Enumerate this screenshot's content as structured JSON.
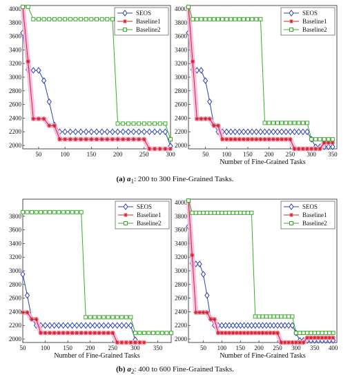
{
  "captions": {
    "a": {
      "tag": "(a)",
      "var": "a",
      "sub": "1",
      "text": ": 200 to 300 Fine-Grained Tasks."
    },
    "b": {
      "tag": "(b)",
      "var": "a",
      "sub": "2",
      "text": ": 400 to 600 Fine-Grained Tasks."
    }
  },
  "colors": {
    "SEOS": "#2b3fb0",
    "Baseline1": "#d42020",
    "Baseline2": "#3aaa2a",
    "band": "#f7b6e2"
  },
  "chart_data": [
    {
      "type": "line",
      "xlabel": "",
      "ylabel": "",
      "xlim": [
        20,
        300
      ],
      "ylim": [
        1950,
        4050
      ],
      "xticks": [
        50,
        100,
        150,
        200,
        250,
        300
      ],
      "yticks": [
        2000,
        2200,
        2400,
        2600,
        2800,
        3000,
        3200,
        3400,
        3600,
        3800,
        4000
      ],
      "legend": "top-right",
      "grid": false,
      "series": [
        {
          "name": "SEOS",
          "marker": "diamond",
          "x": [
            20,
            30,
            40,
            50,
            60,
            70,
            80,
            90,
            100,
            110,
            120,
            130,
            140,
            150,
            160,
            170,
            180,
            190,
            200,
            210,
            220,
            230,
            240,
            250,
            260,
            270,
            280,
            290,
            300
          ],
          "y": [
            3650,
            3110,
            3100,
            3100,
            2950,
            2640,
            2300,
            2200,
            2200,
            2200,
            2200,
            2200,
            2200,
            2200,
            2200,
            2200,
            2200,
            2200,
            2200,
            2200,
            2200,
            2200,
            2200,
            2200,
            2200,
            2200,
            2200,
            2200,
            1990
          ]
        },
        {
          "name": "Baseline1",
          "marker": "star",
          "x": [
            20,
            30,
            40,
            50,
            60,
            70,
            80,
            90,
            100,
            110,
            120,
            130,
            140,
            150,
            160,
            170,
            180,
            190,
            200,
            210,
            220,
            230,
            240,
            250,
            260,
            270,
            280,
            290,
            300
          ],
          "y": [
            4030,
            3230,
            2390,
            2390,
            2390,
            2290,
            2290,
            2090,
            2090,
            2090,
            2090,
            2090,
            2090,
            2090,
            2090,
            2090,
            2090,
            2090,
            2090,
            2090,
            2090,
            2090,
            2090,
            2090,
            1950,
            1950,
            1950,
            1950,
            1950
          ]
        },
        {
          "name": "Baseline2",
          "marker": "square",
          "x": [
            20,
            30,
            40,
            50,
            60,
            70,
            80,
            90,
            100,
            110,
            120,
            130,
            140,
            150,
            160,
            170,
            180,
            190,
            200,
            210,
            220,
            230,
            240,
            250,
            260,
            270,
            280,
            290,
            300
          ],
          "y": [
            4030,
            4030,
            3850,
            3850,
            3850,
            3850,
            3850,
            3850,
            3850,
            3850,
            3850,
            3850,
            3850,
            3850,
            3850,
            3850,
            3850,
            3850,
            2320,
            2320,
            2320,
            2320,
            2320,
            2320,
            2320,
            2320,
            2320,
            2320,
            2090
          ]
        }
      ]
    },
    {
      "type": "line",
      "xlabel": "Number of Fine-Grained Tasks",
      "ylabel": "",
      "xlim": [
        10,
        360
      ],
      "ylim": [
        1950,
        4050
      ],
      "xticks": [
        50,
        100,
        150,
        200,
        250,
        300,
        350
      ],
      "yticks": [
        2000,
        2200,
        2400,
        2600,
        2800,
        3000,
        3200,
        3400,
        3600,
        3800,
        4000
      ],
      "legend": "top-right",
      "grid": false,
      "series": [
        {
          "name": "SEOS",
          "marker": "diamond",
          "x": [
            10,
            20,
            30,
            40,
            50,
            60,
            70,
            80,
            90,
            100,
            110,
            120,
            130,
            140,
            150,
            160,
            170,
            180,
            190,
            200,
            210,
            220,
            230,
            240,
            250,
            260,
            270,
            280,
            290,
            300,
            310,
            320,
            330,
            340,
            350
          ],
          "y": [
            3650,
            3110,
            3100,
            3100,
            2950,
            2640,
            2300,
            2200,
            2200,
            2200,
            2200,
            2200,
            2200,
            2200,
            2200,
            2200,
            2200,
            2200,
            2200,
            2200,
            2200,
            2200,
            2200,
            2200,
            2200,
            2200,
            2200,
            2200,
            2200,
            2090,
            1980,
            1980,
            1980,
            1980,
            1980
          ]
        },
        {
          "name": "Baseline1",
          "marker": "star",
          "x": [
            10,
            20,
            30,
            40,
            50,
            60,
            70,
            80,
            90,
            100,
            110,
            120,
            130,
            140,
            150,
            160,
            170,
            180,
            190,
            200,
            210,
            220,
            230,
            240,
            250,
            260,
            270,
            280,
            290,
            300,
            310,
            320,
            330,
            340,
            350
          ],
          "y": [
            4030,
            3230,
            2390,
            2390,
            2390,
            2390,
            2290,
            2290,
            2090,
            2090,
            2090,
            2090,
            2090,
            2090,
            2090,
            2090,
            2090,
            2090,
            2090,
            2090,
            2090,
            2090,
            2090,
            2090,
            2090,
            1950,
            1950,
            1950,
            1950,
            1950,
            1950,
            1950,
            2040,
            2040,
            2040
          ]
        },
        {
          "name": "Baseline2",
          "marker": "square",
          "x": [
            10,
            20,
            30,
            40,
            50,
            60,
            70,
            80,
            90,
            100,
            110,
            120,
            130,
            140,
            150,
            160,
            170,
            180,
            190,
            200,
            210,
            220,
            230,
            240,
            250,
            260,
            270,
            280,
            290,
            300,
            310,
            320,
            330,
            340,
            350
          ],
          "y": [
            4030,
            3850,
            3850,
            3850,
            3850,
            3850,
            3850,
            3850,
            3850,
            3850,
            3850,
            3850,
            3850,
            3850,
            3850,
            3850,
            3850,
            3850,
            2330,
            2330,
            2330,
            2330,
            2330,
            2330,
            2330,
            2330,
            2330,
            2330,
            2330,
            2090,
            2090,
            2090,
            2090,
            2090,
            2090
          ]
        }
      ]
    },
    {
      "type": "line",
      "xlabel": "Number of Fine-Grained Tasks",
      "ylabel": "",
      "xlim": [
        50,
        380
      ],
      "ylim": [
        1950,
        4050
      ],
      "xticks": [
        50,
        100,
        150,
        200,
        250,
        300,
        350
      ],
      "yticks": [
        2000,
        2200,
        2400,
        2600,
        2800,
        3000,
        3200,
        3400,
        3600,
        3800
      ],
      "legend": "top-right",
      "grid": false,
      "series": [
        {
          "name": "SEOS",
          "marker": "diamond",
          "x": [
            50,
            60,
            70,
            80,
            90,
            100,
            110,
            120,
            130,
            140,
            150,
            160,
            170,
            180,
            190,
            200,
            210,
            220,
            230,
            240,
            250,
            260,
            270,
            280,
            290,
            300
          ],
          "y": [
            2950,
            2640,
            2300,
            2200,
            2200,
            2200,
            2200,
            2200,
            2200,
            2200,
            2200,
            2200,
            2200,
            2200,
            2200,
            2200,
            2200,
            2200,
            2200,
            2200,
            2200,
            2200,
            2200,
            2200,
            2200,
            1990
          ]
        },
        {
          "name": "Baseline1",
          "marker": "star",
          "x": [
            50,
            60,
            70,
            80,
            90,
            100,
            110,
            120,
            130,
            140,
            150,
            160,
            170,
            180,
            190,
            200,
            210,
            220,
            230,
            240,
            250,
            260,
            270,
            280,
            290,
            300,
            310,
            320
          ],
          "y": [
            2390,
            2390,
            2290,
            2290,
            2090,
            2090,
            2090,
            2090,
            2090,
            2090,
            2090,
            2090,
            2090,
            2090,
            2090,
            2090,
            2090,
            2090,
            2090,
            2090,
            2090,
            1950,
            1950,
            1950,
            1950,
            1950,
            1950,
            1950
          ]
        },
        {
          "name": "Baseline2",
          "marker": "square",
          "x": [
            50,
            60,
            70,
            80,
            90,
            100,
            110,
            120,
            130,
            140,
            150,
            160,
            170,
            180,
            190,
            200,
            210,
            220,
            230,
            240,
            250,
            260,
            270,
            280,
            290,
            300,
            310,
            320,
            330,
            340,
            350,
            360,
            370,
            380
          ],
          "y": [
            3860,
            3860,
            3860,
            3860,
            3860,
            3860,
            3860,
            3860,
            3860,
            3860,
            3860,
            3860,
            3860,
            3860,
            2320,
            2320,
            2320,
            2320,
            2320,
            2320,
            2320,
            2320,
            2320,
            2320,
            2320,
            2090,
            2090,
            2090,
            2090,
            2090,
            2090,
            2090,
            2090,
            2090
          ]
        }
      ]
    },
    {
      "type": "line",
      "xlabel": "Number of Fine-Grained Tasks",
      "ylabel": "",
      "xlim": [
        10,
        410
      ],
      "ylim": [
        1950,
        4050
      ],
      "xticks": [
        50,
        100,
        150,
        200,
        250,
        300,
        350,
        400
      ],
      "yticks": [
        2000,
        2200,
        2400,
        2600,
        2800,
        3000,
        3200,
        3400,
        3600,
        3800,
        4000
      ],
      "legend": "top-right",
      "grid": false,
      "series": [
        {
          "name": "SEOS",
          "marker": "diamond",
          "x": [
            10,
            20,
            30,
            40,
            50,
            60,
            70,
            80,
            90,
            100,
            110,
            120,
            130,
            140,
            150,
            160,
            170,
            180,
            190,
            200,
            210,
            220,
            230,
            240,
            250,
            260,
            270,
            280,
            290,
            300,
            310,
            320,
            330,
            340,
            350,
            360,
            370,
            380,
            390,
            400
          ],
          "y": [
            3650,
            3110,
            3100,
            3100,
            2950,
            2640,
            2300,
            2200,
            2200,
            2200,
            2200,
            2200,
            2200,
            2200,
            2200,
            2200,
            2200,
            2200,
            2200,
            2200,
            2200,
            2200,
            2200,
            2200,
            2200,
            2200,
            2200,
            2200,
            2200,
            2090,
            1980,
            1980,
            1980,
            1980,
            1980,
            1980,
            1980,
            1980,
            1980,
            1980
          ]
        },
        {
          "name": "Baseline1",
          "marker": "star",
          "x": [
            10,
            20,
            30,
            40,
            50,
            60,
            70,
            80,
            90,
            100,
            110,
            120,
            130,
            140,
            150,
            160,
            170,
            180,
            190,
            200,
            210,
            220,
            230,
            240,
            250,
            260,
            270,
            280,
            290,
            300,
            310,
            320,
            330,
            340,
            350,
            360,
            370,
            380,
            390,
            400
          ],
          "y": [
            4030,
            3230,
            2390,
            2390,
            2390,
            2390,
            2290,
            2290,
            2090,
            2090,
            2090,
            2090,
            2090,
            2090,
            2090,
            2090,
            2090,
            2090,
            2090,
            2090,
            2090,
            2090,
            2090,
            2090,
            2090,
            1950,
            1950,
            1950,
            1950,
            1950,
            1950,
            1950,
            2020,
            2020,
            2020,
            2020,
            2020,
            2020,
            2020,
            2020
          ]
        },
        {
          "name": "Baseline2",
          "marker": "square",
          "x": [
            10,
            20,
            30,
            40,
            50,
            60,
            70,
            80,
            90,
            100,
            110,
            120,
            130,
            140,
            150,
            160,
            170,
            180,
            190,
            200,
            210,
            220,
            230,
            240,
            250,
            260,
            270,
            280,
            290,
            300,
            310,
            320,
            330,
            340,
            350,
            360,
            370,
            380,
            390,
            400
          ],
          "y": [
            4030,
            3850,
            3850,
            3850,
            3850,
            3850,
            3850,
            3850,
            3850,
            3850,
            3850,
            3850,
            3850,
            3850,
            3850,
            3850,
            3850,
            3850,
            2330,
            2330,
            2330,
            2330,
            2330,
            2330,
            2330,
            2330,
            2330,
            2330,
            2330,
            2090,
            2090,
            2090,
            2090,
            2090,
            2090,
            2090,
            2090,
            2090,
            2090,
            2090
          ]
        }
      ]
    }
  ]
}
